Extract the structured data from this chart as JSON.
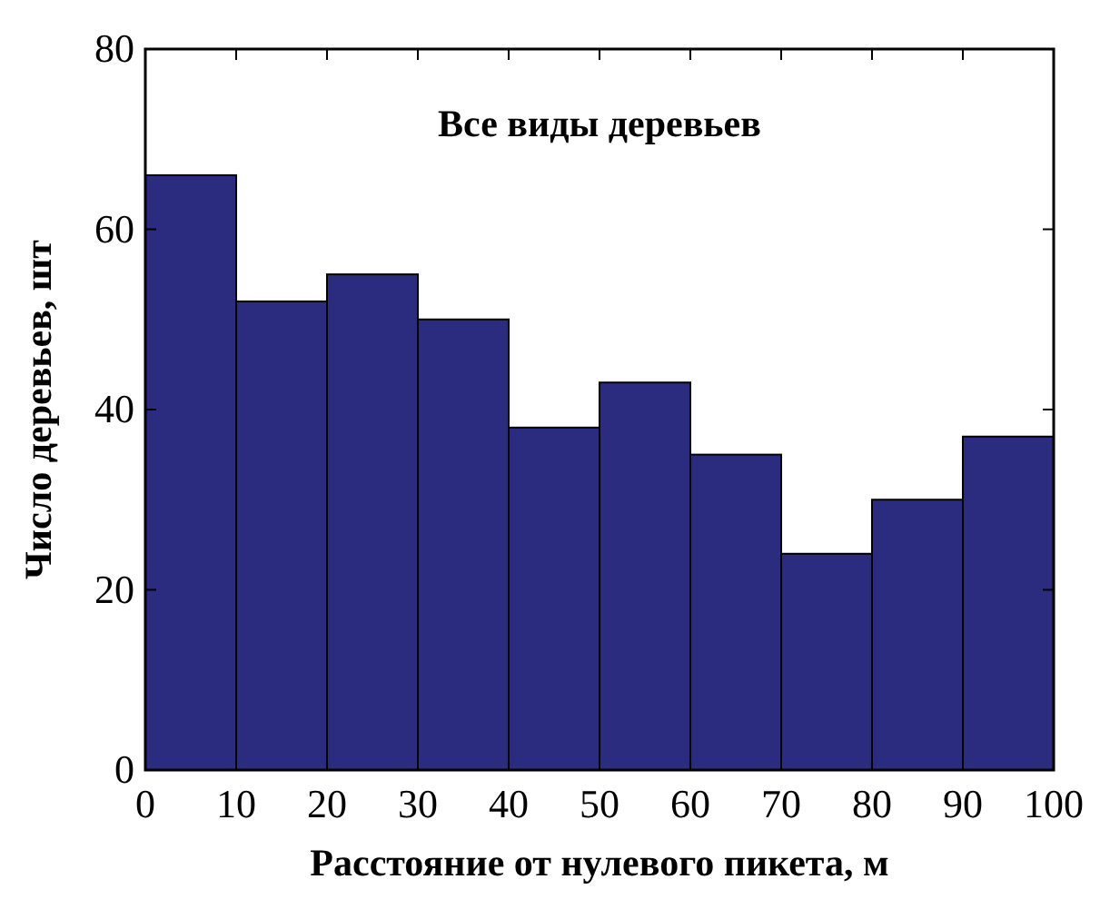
{
  "chart_data": {
    "type": "histogram",
    "title": "Все виды деревьев",
    "xlabel": "Расстояние от нулевого пикета, м",
    "ylabel": "Число деревьев, шт",
    "bins": [
      0,
      10,
      20,
      30,
      40,
      50,
      60,
      70,
      80,
      90,
      100
    ],
    "values": [
      66,
      52,
      55,
      50,
      38,
      43,
      35,
      24,
      30,
      37
    ],
    "color": "#2b2b80",
    "xlim": [
      0,
      100
    ],
    "xticks": [
      0,
      10,
      20,
      30,
      40,
      50,
      60,
      70,
      80,
      90,
      100
    ],
    "ylim": [
      0,
      80
    ],
    "yticks": [
      0,
      20,
      40,
      60,
      80
    ],
    "grid": false
  }
}
